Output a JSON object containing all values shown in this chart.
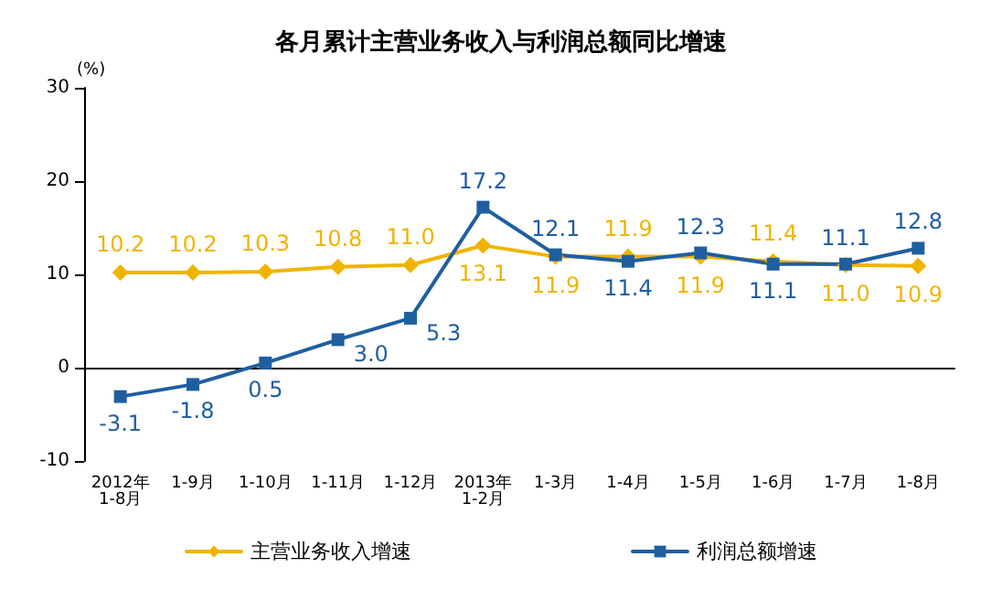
{
  "chart_data": {
    "type": "line",
    "title": "各月累计主营业务收入与利润总额同比增速",
    "ylabel": "(%)",
    "categories": [
      "2012年\n1-8月",
      "1-9月",
      "1-10月",
      "1-11月",
      "1-12月",
      "2013年\n1-2月",
      "1-3月",
      "1-4月",
      "1-5月",
      "1-6月",
      "1-7月",
      "1-8月"
    ],
    "series": [
      {
        "name": "主营业务收入增速",
        "color": "#f0b400",
        "marker": "diamond",
        "values": [
          10.2,
          10.2,
          10.3,
          10.8,
          11.0,
          13.1,
          11.9,
          11.9,
          11.9,
          11.4,
          11.0,
          10.9
        ],
        "value_labels": [
          "10.2",
          "10.2",
          "10.3",
          "10.8",
          "11.0",
          "13.1",
          "11.9",
          "11.9",
          "11.9",
          "11.4",
          "11.0",
          "10.9"
        ]
      },
      {
        "name": "利润总额增速",
        "color": "#1f5fa0",
        "marker": "square",
        "values": [
          -3.1,
          -1.8,
          0.5,
          3.0,
          5.3,
          17.2,
          12.1,
          11.4,
          12.3,
          11.1,
          11.1,
          12.8
        ],
        "value_labels": [
          "-3.1",
          "-1.8",
          "0.5",
          "3.0",
          "5.3",
          "17.2",
          "12.1",
          "11.4",
          "12.3",
          "11.1",
          "11.1",
          "12.8"
        ]
      }
    ],
    "ylim": [
      -10,
      30
    ],
    "yticks": [
      -10,
      0,
      10,
      20,
      30
    ],
    "legend": "bottom",
    "line_style": "solid"
  }
}
